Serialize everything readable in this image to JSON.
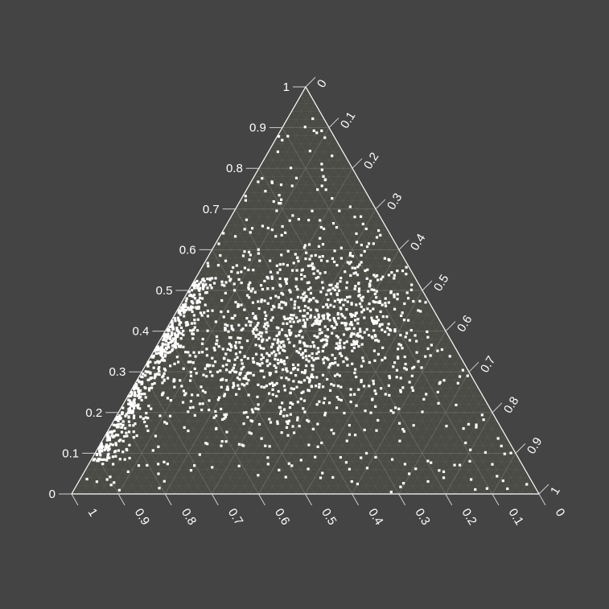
{
  "chart_data": {
    "type": "scatter",
    "subtype": "ternary",
    "title": "",
    "axes": {
      "left": {
        "label": "",
        "ticks": [
          "0",
          "0.1",
          "0.2",
          "0.3",
          "0.4",
          "0.5",
          "0.6",
          "0.7",
          "0.8",
          "0.9",
          "1"
        ],
        "range": [
          0,
          1
        ]
      },
      "right": {
        "label": "",
        "ticks": [
          "0",
          "0.1",
          "0.2",
          "0.3",
          "0.4",
          "0.5",
          "0.6",
          "0.7",
          "0.8",
          "0.9",
          "1"
        ],
        "range": [
          0,
          1
        ]
      },
      "bottom": {
        "label": "",
        "ticks": [
          "1",
          "0.9",
          "0.8",
          "0.7",
          "0.6",
          "0.5",
          "0.4",
          "0.3",
          "0.2",
          "0.1",
          "0"
        ],
        "range": [
          0,
          1
        ]
      }
    },
    "grid": true,
    "legend": "none",
    "n_points_approx": 1800,
    "point_color": "#ffffff",
    "plot_background": "#4a4b45",
    "page_background": "#444444",
    "grid_color": "#6d6e68"
  }
}
